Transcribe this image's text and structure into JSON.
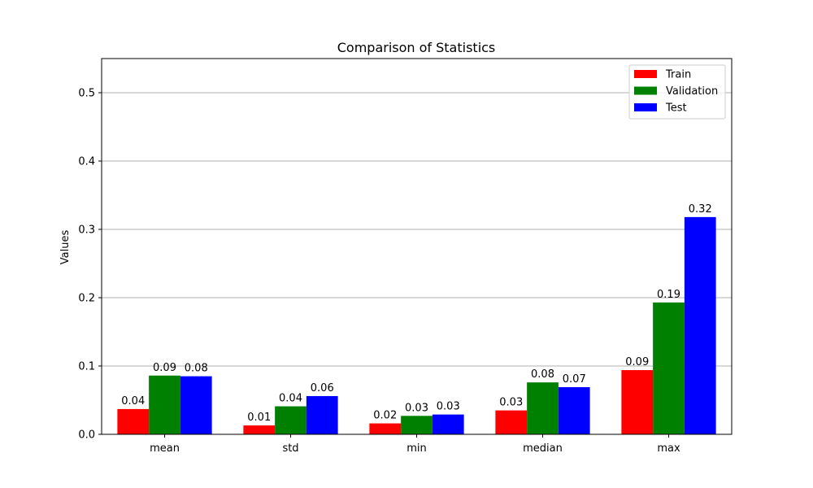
{
  "chart_data": {
    "type": "bar",
    "title": "Comparison of Statistics",
    "xlabel": "",
    "ylabel": "Values",
    "categories": [
      "mean",
      "std",
      "min",
      "median",
      "max"
    ],
    "series": [
      {
        "name": "Train",
        "color": "#ff0000",
        "values": [
          0.037,
          0.013,
          0.016,
          0.035,
          0.094
        ],
        "labels": [
          "0.04",
          "0.01",
          "0.02",
          "0.03",
          "0.09"
        ]
      },
      {
        "name": "Validation",
        "color": "#008000",
        "values": [
          0.086,
          0.041,
          0.027,
          0.076,
          0.193
        ],
        "labels": [
          "0.09",
          "0.04",
          "0.03",
          "0.08",
          "0.19"
        ]
      },
      {
        "name": "Test",
        "color": "#0000ff",
        "values": [
          0.085,
          0.056,
          0.029,
          0.069,
          0.318
        ],
        "labels": [
          "0.08",
          "0.06",
          "0.03",
          "0.07",
          "0.32"
        ]
      }
    ],
    "ylim": [
      0,
      0.55
    ],
    "yticks": [
      0.0,
      0.1,
      0.2,
      0.3,
      0.4,
      0.5
    ],
    "ytick_labels": [
      "0.0",
      "0.1",
      "0.2",
      "0.3",
      "0.4",
      "0.5"
    ],
    "grid": "y",
    "legend_position": "top-right"
  }
}
